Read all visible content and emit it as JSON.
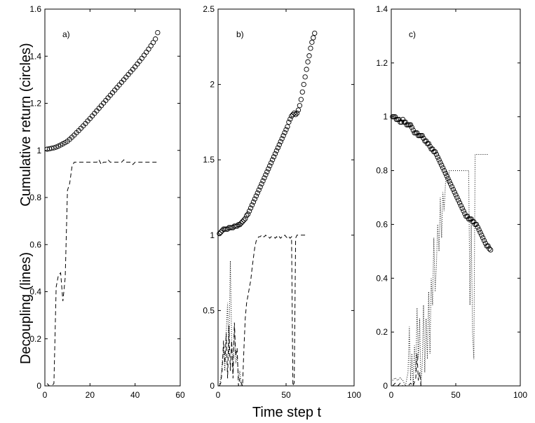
{
  "figure": {
    "ylabel_upper": "Cumulative return (circles)",
    "ylabel_lower": "Decoupling (lines)",
    "xlabel": "Time step t"
  },
  "chart_data": [
    {
      "type": "line",
      "panel_label": "a)",
      "xlim": [
        0,
        60
      ],
      "ylim": [
        0,
        1.6
      ],
      "xticks": [
        0,
        20,
        40,
        60
      ],
      "yticks": [
        0,
        0.2,
        0.4,
        0.6,
        0.8,
        1,
        1.2,
        1.4,
        1.6
      ],
      "xtick_labels": [
        "0",
        "20",
        "40",
        "60"
      ],
      "ytick_labels": [
        "0",
        "0.2",
        "0.4",
        "0.6",
        "0.8",
        "1",
        "1.2",
        "1.4",
        "1.6"
      ],
      "series": [
        {
          "name": "cumulative return",
          "style": "circles",
          "x": [
            1,
            2,
            3,
            4,
            5,
            6,
            7,
            8,
            9,
            10,
            11,
            12,
            13,
            14,
            15,
            16,
            17,
            18,
            19,
            20,
            21,
            22,
            23,
            24,
            25,
            26,
            27,
            28,
            29,
            30,
            31,
            32,
            33,
            34,
            35,
            36,
            37,
            38,
            39,
            40,
            41,
            42,
            43,
            44,
            45,
            46,
            47,
            48,
            49,
            50
          ],
          "values": [
            1.005,
            1.007,
            1.009,
            1.011,
            1.014,
            1.018,
            1.023,
            1.028,
            1.033,
            1.039,
            1.047,
            1.056,
            1.065,
            1.075,
            1.084,
            1.094,
            1.104,
            1.114,
            1.125,
            1.135,
            1.146,
            1.157,
            1.168,
            1.179,
            1.19,
            1.201,
            1.212,
            1.223,
            1.234,
            1.245,
            1.256,
            1.267,
            1.278,
            1.289,
            1.3,
            1.311,
            1.322,
            1.333,
            1.344,
            1.355,
            1.367,
            1.379,
            1.391,
            1.404,
            1.417,
            1.43,
            1.444,
            1.458,
            1.473,
            1.5
          ]
        },
        {
          "name": "decoupling",
          "style": "dashed",
          "x": [
            1,
            2,
            3,
            4,
            5,
            6,
            7,
            8,
            9,
            10,
            11,
            12,
            13,
            14,
            15,
            16,
            17,
            18,
            19,
            20,
            21,
            22,
            23,
            24,
            25,
            26,
            27,
            28,
            29,
            30,
            31,
            32,
            33,
            34,
            35,
            36,
            37,
            38,
            39,
            40,
            41,
            42,
            43,
            44,
            45,
            46,
            47,
            48,
            49,
            50
          ],
          "values": [
            0.01,
            0.0,
            0.0,
            0.01,
            0.42,
            0.47,
            0.48,
            0.36,
            0.46,
            0.83,
            0.86,
            0.93,
            0.95,
            0.95,
            0.95,
            0.95,
            0.95,
            0.95,
            0.95,
            0.95,
            0.95,
            0.95,
            0.95,
            0.96,
            0.94,
            0.95,
            0.95,
            0.96,
            0.95,
            0.95,
            0.95,
            0.95,
            0.95,
            0.95,
            0.96,
            0.95,
            0.95,
            0.95,
            0.94,
            0.95,
            0.95,
            0.95,
            0.95,
            0.95,
            0.95,
            0.95,
            0.95,
            0.95,
            0.95,
            0.95
          ]
        },
        {
          "name": "decoupling 2",
          "style": "dotted",
          "x": [
            1,
            2,
            3,
            4,
            5,
            6,
            7,
            8,
            9,
            10
          ],
          "values": [
            0.0,
            0.0,
            0.0,
            0.0,
            0.0,
            0.0,
            0.0,
            0.0,
            0.0,
            0.0
          ]
        }
      ]
    },
    {
      "type": "line",
      "panel_label": "b)",
      "xlim": [
        0,
        100
      ],
      "ylim": [
        0,
        2.5
      ],
      "xticks": [
        0,
        50,
        100
      ],
      "yticks": [
        0,
        0.5,
        1,
        1.5,
        2,
        2.5
      ],
      "xtick_labels": [
        "0",
        "50",
        "100"
      ],
      "ytick_labels": [
        "0",
        "0.5",
        "1",
        "1.5",
        "2",
        "2.5"
      ],
      "series": [
        {
          "name": "cumulative return",
          "style": "circles",
          "x": [
            1,
            2,
            3,
            4,
            5,
            6,
            7,
            8,
            9,
            10,
            11,
            12,
            13,
            14,
            15,
            16,
            17,
            18,
            19,
            20,
            21,
            22,
            23,
            24,
            25,
            26,
            27,
            28,
            29,
            30,
            31,
            32,
            33,
            34,
            35,
            36,
            37,
            38,
            39,
            40,
            41,
            42,
            43,
            44,
            45,
            46,
            47,
            48,
            49,
            50,
            51,
            52,
            53,
            54,
            55,
            56,
            57,
            58,
            59,
            60,
            61,
            62,
            63,
            64,
            65,
            66,
            67,
            68,
            69,
            70,
            71
          ],
          "values": [
            1.01,
            1.02,
            1.03,
            1.04,
            1.04,
            1.04,
            1.04,
            1.05,
            1.05,
            1.05,
            1.05,
            1.06,
            1.06,
            1.06,
            1.07,
            1.07,
            1.08,
            1.09,
            1.1,
            1.11,
            1.13,
            1.14,
            1.16,
            1.18,
            1.2,
            1.22,
            1.24,
            1.26,
            1.28,
            1.3,
            1.32,
            1.34,
            1.36,
            1.38,
            1.4,
            1.42,
            1.44,
            1.46,
            1.48,
            1.5,
            1.52,
            1.54,
            1.56,
            1.58,
            1.6,
            1.62,
            1.64,
            1.66,
            1.68,
            1.7,
            1.72,
            1.75,
            1.77,
            1.79,
            1.8,
            1.81,
            1.8,
            1.81,
            1.83,
            1.86,
            1.9,
            1.95,
            2.0,
            2.05,
            2.1,
            2.15,
            2.19,
            2.24,
            2.28,
            2.31,
            2.34
          ]
        },
        {
          "name": "decoupling",
          "style": "dashed",
          "x": [
            1,
            2,
            3,
            4,
            5,
            6,
            7,
            8,
            9,
            10,
            11,
            12,
            13,
            14,
            15,
            16,
            17,
            18,
            19,
            20,
            21,
            22,
            23,
            24,
            25,
            26,
            27,
            28,
            29,
            30,
            31,
            32,
            33,
            34,
            35,
            36,
            37,
            38,
            39,
            40,
            41,
            42,
            43,
            44,
            45,
            46,
            47,
            48,
            49,
            50,
            51,
            52,
            53,
            54,
            55,
            56,
            57,
            58,
            59,
            60,
            61,
            62,
            63,
            64,
            65
          ],
          "values": [
            0.0,
            0.02,
            0.1,
            0.3,
            0.15,
            0.35,
            0.05,
            0.4,
            0.1,
            0.3,
            0.05,
            0.42,
            0.2,
            0.25,
            0.0,
            0.05,
            0.02,
            0.0,
            0.25,
            0.45,
            0.55,
            0.6,
            0.65,
            0.7,
            0.78,
            0.85,
            0.92,
            0.96,
            0.98,
            0.99,
            0.99,
            1.0,
            0.99,
            0.99,
            1.0,
            0.99,
            0.99,
            0.98,
            0.99,
            0.99,
            0.99,
            0.98,
            0.99,
            0.98,
            0.99,
            0.98,
            0.99,
            0.99,
            1.0,
            0.99,
            0.98,
            0.99,
            0.98,
            0.99,
            0.0,
            0.02,
            0.98,
            1.0,
            1.0,
            1.0,
            1.0,
            1.0,
            1.0,
            1.0,
            1.0
          ]
        },
        {
          "name": "decoupling 2",
          "style": "dotted",
          "x": [
            1,
            2,
            3,
            4,
            5,
            6,
            7,
            8,
            9,
            10,
            11,
            12,
            13,
            14,
            15,
            16,
            17,
            18
          ],
          "values": [
            0.0,
            0.05,
            0.15,
            0.25,
            0.1,
            0.35,
            0.55,
            0.2,
            0.83,
            0.3,
            0.1,
            0.4,
            0.15,
            0.2,
            0.05,
            0.1,
            0.0,
            0.0
          ]
        }
      ]
    },
    {
      "type": "line",
      "panel_label": "c)",
      "xlim": [
        0,
        100
      ],
      "ylim": [
        0,
        1.4
      ],
      "xticks": [
        0,
        50,
        100
      ],
      "yticks": [
        0,
        0.2,
        0.4,
        0.6,
        0.8,
        1,
        1.2,
        1.4
      ],
      "xtick_labels": [
        "0",
        "50",
        "100"
      ],
      "ytick_labels": [
        "0",
        "0.2",
        "0.4",
        "0.6",
        "0.8",
        "1",
        "1.2",
        "1.4"
      ],
      "series": [
        {
          "name": "cumulative return",
          "style": "circles",
          "x": [
            1,
            2,
            3,
            4,
            5,
            6,
            7,
            8,
            9,
            10,
            11,
            12,
            13,
            14,
            15,
            16,
            17,
            18,
            19,
            20,
            21,
            22,
            23,
            24,
            25,
            26,
            27,
            28,
            29,
            30,
            31,
            32,
            33,
            34,
            35,
            36,
            37,
            38,
            39,
            40,
            41,
            42,
            43,
            44,
            45,
            46,
            47,
            48,
            49,
            50,
            51,
            52,
            53,
            54,
            55,
            56,
            57,
            58,
            59,
            60,
            61,
            62,
            63,
            64,
            65,
            66,
            67,
            68,
            69,
            70,
            71,
            72,
            73,
            74,
            75,
            76,
            77
          ],
          "values": [
            1.0,
            1.0,
            1.0,
            0.99,
            0.99,
            0.99,
            0.98,
            0.98,
            0.99,
            0.98,
            0.98,
            0.97,
            0.97,
            0.97,
            0.97,
            0.96,
            0.95,
            0.94,
            0.94,
            0.94,
            0.93,
            0.93,
            0.93,
            0.93,
            0.92,
            0.91,
            0.91,
            0.9,
            0.9,
            0.89,
            0.88,
            0.88,
            0.87,
            0.87,
            0.86,
            0.85,
            0.84,
            0.83,
            0.82,
            0.81,
            0.8,
            0.79,
            0.78,
            0.77,
            0.76,
            0.75,
            0.74,
            0.73,
            0.72,
            0.71,
            0.7,
            0.69,
            0.68,
            0.67,
            0.66,
            0.65,
            0.64,
            0.63,
            0.63,
            0.62,
            0.62,
            0.62,
            0.61,
            0.61,
            0.6,
            0.6,
            0.59,
            0.58,
            0.57,
            0.56,
            0.55,
            0.54,
            0.53,
            0.52,
            0.52,
            0.51,
            0.505
          ]
        },
        {
          "name": "decoupling 2",
          "style": "dotted",
          "x": [
            1,
            3,
            5,
            7,
            9,
            11,
            13,
            14,
            15,
            16,
            17,
            18,
            19,
            20,
            21,
            22,
            23,
            24,
            25,
            26,
            27,
            28,
            29,
            30,
            31,
            32,
            33,
            34,
            35,
            36,
            37,
            38,
            39,
            40,
            41,
            42,
            43,
            44,
            45,
            46,
            47,
            48,
            49,
            50,
            55,
            60,
            61,
            62,
            63,
            64,
            65,
            66,
            67,
            70,
            75
          ],
          "values": [
            0.02,
            0.03,
            0.02,
            0.03,
            0.02,
            0.0,
            0.05,
            0.22,
            0.02,
            0.12,
            0.0,
            0.15,
            0.05,
            0.29,
            0.1,
            0.25,
            0.0,
            0.08,
            0.3,
            0.05,
            0.25,
            0.1,
            0.35,
            0.12,
            0.4,
            0.3,
            0.55,
            0.35,
            0.45,
            0.6,
            0.5,
            0.7,
            0.55,
            0.72,
            0.65,
            0.75,
            0.8,
            0.75,
            0.8,
            0.8,
            0.8,
            0.8,
            0.8,
            0.8,
            0.8,
            0.8,
            0.3,
            0.6,
            0.2,
            0.1,
            0.86,
            0.86,
            0.86,
            0.86,
            0.86
          ]
        },
        {
          "name": "decoupling",
          "style": "dashed",
          "x": [
            1,
            3,
            5,
            7,
            9,
            11,
            13,
            15,
            17,
            19,
            20,
            21,
            22,
            23,
            24,
            25,
            30,
            40,
            50,
            60,
            70,
            77
          ],
          "values": [
            0.0,
            0.01,
            0.0,
            0.01,
            0.0,
            0.0,
            0.0,
            0.01,
            0.0,
            0.03,
            0.12,
            0.02,
            0.05,
            0.0,
            0.0,
            0.0,
            0.0,
            0.0,
            0.0,
            0.0,
            0.0,
            0.0
          ]
        }
      ]
    }
  ]
}
